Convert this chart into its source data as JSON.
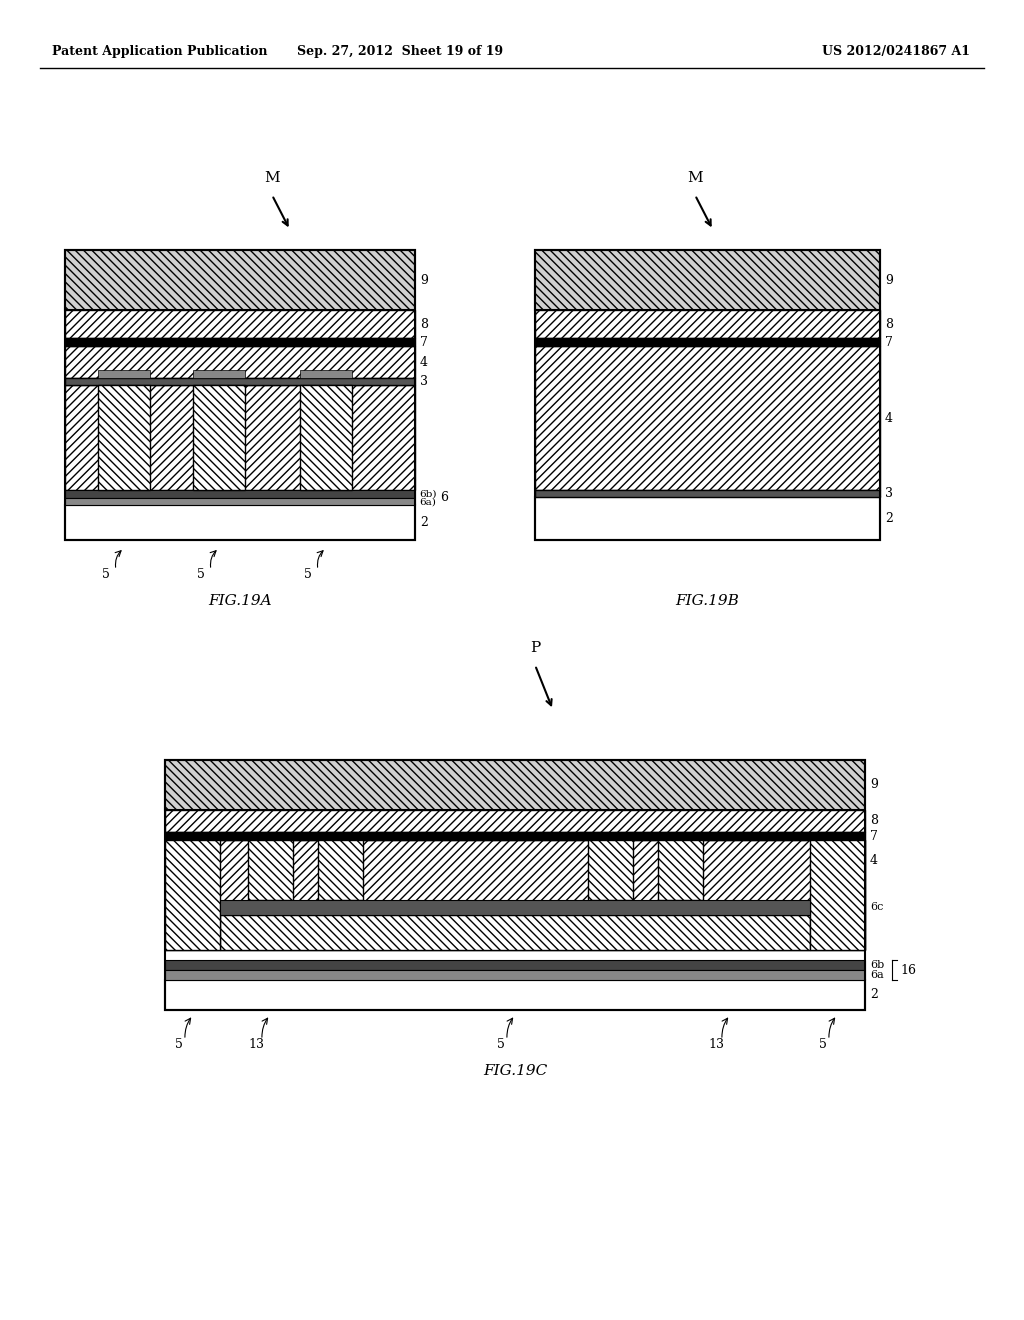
{
  "header_left": "Patent Application Publication",
  "header_mid": "Sep. 27, 2012  Sheet 19 of 19",
  "header_right": "US 2012/0241867 A1",
  "background_color": "#ffffff"
}
